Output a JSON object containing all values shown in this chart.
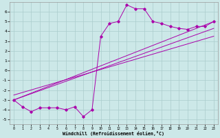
{
  "bg_color": "#cce8e8",
  "grid_color": "#aacccc",
  "line_color": "#aa00aa",
  "xlabel": "Windchill (Refroidissement éolien,°C)",
  "xmin": -0.5,
  "xmax": 23.5,
  "ymin": -5.5,
  "ymax": 7.0,
  "yticks": [
    -5,
    -4,
    -3,
    -2,
    -1,
    0,
    1,
    2,
    3,
    4,
    5,
    6
  ],
  "xticks": [
    0,
    1,
    2,
    3,
    4,
    5,
    6,
    7,
    8,
    9,
    10,
    11,
    12,
    13,
    14,
    15,
    16,
    17,
    18,
    19,
    20,
    21,
    22,
    23
  ],
  "main_x": [
    0,
    1,
    2,
    3,
    4,
    5,
    6,
    7,
    8,
    9,
    10,
    11,
    12,
    13,
    14,
    15,
    16,
    17,
    18,
    19,
    20,
    21,
    22,
    23
  ],
  "main_y": [
    -3.0,
    -3.7,
    -4.2,
    -3.8,
    -3.8,
    -3.8,
    -4.0,
    -3.7,
    -4.7,
    -4.0,
    3.5,
    4.8,
    5.0,
    6.7,
    6.3,
    6.3,
    5.0,
    4.8,
    4.5,
    4.3,
    4.2,
    4.5,
    4.5,
    5.0
  ],
  "line1_x": [
    0,
    23
  ],
  "line1_y": [
    -3.0,
    5.0
  ],
  "line2_x": [
    0,
    23
  ],
  "line2_y": [
    -3.0,
    4.3
  ],
  "line3_x": [
    0,
    23
  ],
  "line3_y": [
    -2.5,
    3.5
  ]
}
